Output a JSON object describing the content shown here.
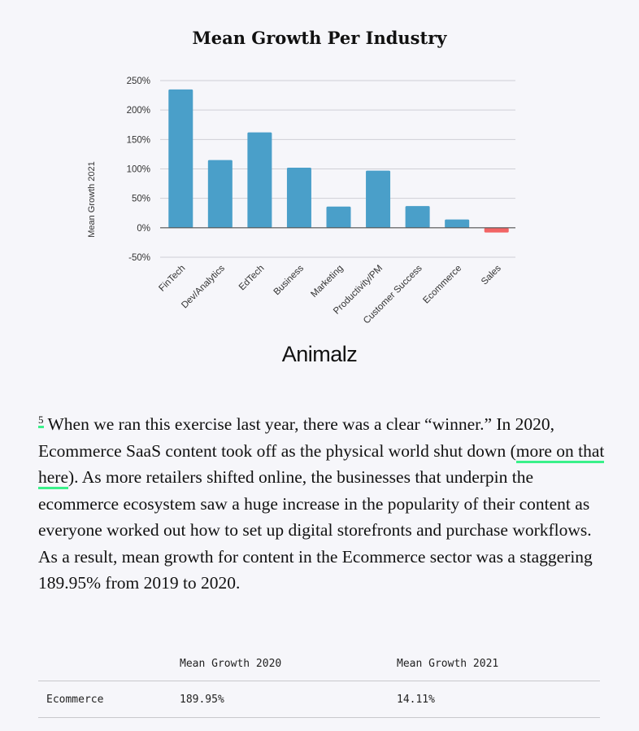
{
  "chart_data": {
    "type": "bar",
    "title": "Mean Growth Per Industry",
    "ylabel": "Mean Growth 2021",
    "xlabel": "",
    "categories": [
      "FinTech",
      "Dev/Analytics",
      "EdTech",
      "Business",
      "Marketing",
      "Productivity/PM",
      "Customer Success",
      "Ecommerce",
      "Sales"
    ],
    "values": [
      235,
      115,
      162,
      102,
      36,
      97,
      37,
      14.11,
      -8
    ],
    "ylim": [
      -50,
      250
    ],
    "yticks": [
      "250%",
      "200%",
      "150%",
      "100%",
      "50%",
      "0%",
      "-50%"
    ],
    "ytick_values": [
      250,
      200,
      150,
      100,
      50,
      0,
      -50
    ],
    "grid": true,
    "colors": {
      "positive": "#4a9fc9",
      "negative": "#f26464"
    }
  },
  "logo": "Animalz",
  "paragraph": {
    "footnote": "5",
    "text_before": " When we ran this exercise last year, there was a clear “winner.” In 2020, Ecommerce SaaS content took off as the physical world shut down (",
    "link": "more on that here",
    "text_after": "). As more retailers shifted online, the businesses that underpin the ecommerce ecosystem saw a huge increase in the popularity of their content as everyone worked out how to set up digital storefronts and purchase workflows. As a result, mean growth for content in the Ecommerce sector was a staggering 189.95% from 2019 to 2020."
  },
  "table": {
    "headers": [
      "",
      "Mean Growth 2020",
      "Mean Growth 2021"
    ],
    "rows": [
      [
        "Ecommerce",
        "189.95%",
        "14.11%"
      ]
    ]
  },
  "accent": "#3af08a"
}
